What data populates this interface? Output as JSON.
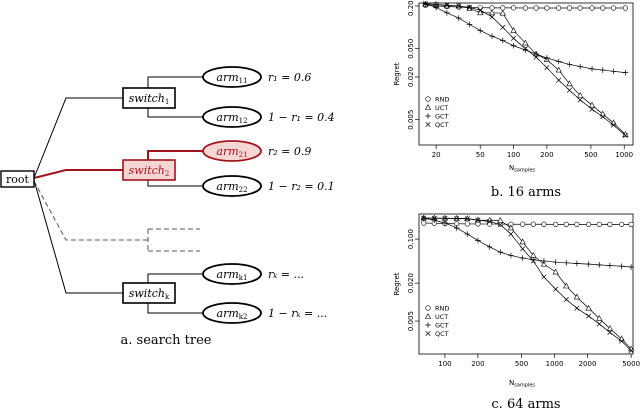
{
  "tree": {
    "root_label": "root",
    "switches": [
      {
        "base": "switch",
        "sub": "1",
        "highlight": false
      },
      {
        "base": "switch",
        "sub": "2",
        "highlight": true
      },
      {
        "base": "switch",
        "sub": "k",
        "highlight": false
      }
    ],
    "arms": [
      {
        "base": "arm",
        "sub": "11",
        "reward": "r₁ = 0.6",
        "highlight": false
      },
      {
        "base": "arm",
        "sub": "12",
        "reward": "1 − r₁ = 0.4",
        "highlight": false
      },
      {
        "base": "arm",
        "sub": "21",
        "reward": "r₂ = 0.9",
        "highlight": true
      },
      {
        "base": "arm",
        "sub": "22",
        "reward": "1 − r₂ = 0.1",
        "highlight": false
      },
      {
        "base": "arm",
        "sub": "k1",
        "reward": "rₖ = ...",
        "highlight": false
      },
      {
        "base": "arm",
        "sub": "k2",
        "reward": "1 − rₖ = ...",
        "highlight": false
      }
    ],
    "caption": "a. search tree",
    "colors": {
      "highlight_stroke": "#a0141e",
      "highlight_fill": "#f6d5d5"
    }
  },
  "chart_data": [
    {
      "type": "line",
      "caption": "b. 16 arms",
      "xlabel": "N",
      "xlabel_sub": "samples",
      "ylabel": "Regret",
      "xscale": "log",
      "yscale": "log",
      "xlim": [
        14,
        1200
      ],
      "ylim": [
        0.0022,
        0.22
      ],
      "xticks": [
        20,
        50,
        100,
        200,
        500,
        1000
      ],
      "xtick_labels": [
        "20",
        "50",
        "100",
        "200",
        "500",
        "1000"
      ],
      "yticks": [
        0.005,
        0.02,
        0.05,
        0.2
      ],
      "ytick_labels": [
        "0.005",
        "0.020",
        "0.050",
        "0.200"
      ],
      "legend_position": "bottom-left",
      "series": [
        {
          "name": "RND",
          "marker": "circle",
          "x": [
            16,
            20,
            25,
            32,
            40,
            50,
            64,
            80,
            100,
            128,
            160,
            200,
            256,
            320,
            400,
            512,
            640,
            800,
            1024
          ],
          "y": [
            0.205,
            0.2,
            0.196,
            0.193,
            0.19,
            0.189,
            0.188,
            0.188,
            0.188,
            0.187,
            0.187,
            0.187,
            0.187,
            0.187,
            0.187,
            0.187,
            0.187,
            0.187,
            0.187
          ]
        },
        {
          "name": "UCT",
          "marker": "triangle",
          "x": [
            16,
            20,
            25,
            32,
            40,
            50,
            64,
            80,
            100,
            128,
            160,
            200,
            256,
            320,
            400,
            512,
            640,
            800,
            1024
          ],
          "y": [
            0.21,
            0.21,
            0.2,
            0.2,
            0.185,
            0.16,
            0.16,
            0.158,
            0.09,
            0.06,
            0.042,
            0.035,
            0.025,
            0.016,
            0.011,
            0.008,
            0.006,
            0.0045,
            0.0031
          ]
        },
        {
          "name": "GCT",
          "marker": "plus",
          "x": [
            16,
            20,
            25,
            32,
            40,
            50,
            64,
            80,
            100,
            128,
            160,
            200,
            256,
            320,
            400,
            512,
            640,
            800,
            1024
          ],
          "y": [
            0.215,
            0.19,
            0.16,
            0.135,
            0.11,
            0.09,
            0.075,
            0.065,
            0.055,
            0.048,
            0.042,
            0.037,
            0.033,
            0.03,
            0.028,
            0.026,
            0.025,
            0.024,
            0.023
          ]
        },
        {
          "name": "QCT",
          "marker": "cross",
          "x": [
            16,
            20,
            25,
            32,
            40,
            50,
            64,
            80,
            100,
            128,
            160,
            200,
            256,
            320,
            400,
            512,
            640,
            800,
            1024
          ],
          "y": [
            0.215,
            0.21,
            0.205,
            0.2,
            0.19,
            0.175,
            0.14,
            0.1,
            0.07,
            0.05,
            0.038,
            0.027,
            0.018,
            0.013,
            0.0095,
            0.007,
            0.0055,
            0.0042,
            0.003
          ]
        }
      ]
    },
    {
      "type": "line",
      "caption": "c. 64 arms",
      "xlabel": "N",
      "xlabel_sub": "samples",
      "ylabel": "Regret",
      "xscale": "log",
      "yscale": "log",
      "xlim": [
        58,
        5200
      ],
      "ylim": [
        0.0015,
        0.25
      ],
      "xticks": [
        100,
        200,
        500,
        1000,
        2000,
        5000
      ],
      "xtick_labels": [
        "100",
        "200",
        "500",
        "1000",
        "2000",
        "5000"
      ],
      "yticks": [
        0.005,
        0.02,
        0.1
      ],
      "ytick_labels": [
        "0.005",
        "0.020",
        "0.100"
      ],
      "legend_position": "bottom-left",
      "series": [
        {
          "name": "RND",
          "marker": "circle",
          "x": [
            64,
            80,
            100,
            128,
            160,
            200,
            256,
            320,
            400,
            512,
            640,
            800,
            1024,
            1280,
            1600,
            2048,
            2560,
            3200,
            4096,
            5000
          ],
          "y": [
            0.18,
            0.178,
            0.176,
            0.175,
            0.174,
            0.174,
            0.173,
            0.173,
            0.172,
            0.172,
            0.172,
            0.172,
            0.171,
            0.171,
            0.171,
            0.171,
            0.171,
            0.171,
            0.171,
            0.171
          ]
        },
        {
          "name": "UCT",
          "marker": "triangle",
          "x": [
            64,
            80,
            100,
            128,
            160,
            200,
            256,
            320,
            400,
            512,
            640,
            800,
            1024,
            1280,
            1600,
            2048,
            2560,
            3200,
            4096,
            5000
          ],
          "y": [
            0.215,
            0.215,
            0.214,
            0.213,
            0.212,
            0.2,
            0.199,
            0.198,
            0.15,
            0.09,
            0.055,
            0.04,
            0.03,
            0.018,
            0.012,
            0.008,
            0.0055,
            0.0038,
            0.0026,
            0.0018
          ]
        },
        {
          "name": "GCT",
          "marker": "plus",
          "x": [
            64,
            80,
            100,
            128,
            160,
            200,
            256,
            320,
            400,
            512,
            640,
            800,
            1024,
            1280,
            1600,
            2048,
            2560,
            3200,
            4096,
            5000
          ],
          "y": [
            0.215,
            0.2,
            0.18,
            0.15,
            0.12,
            0.095,
            0.075,
            0.062,
            0.055,
            0.05,
            0.047,
            0.045,
            0.043,
            0.042,
            0.041,
            0.04,
            0.039,
            0.038,
            0.037,
            0.036
          ]
        },
        {
          "name": "QCT",
          "marker": "cross",
          "x": [
            64,
            80,
            100,
            128,
            160,
            200,
            256,
            320,
            400,
            512,
            640,
            800,
            1024,
            1280,
            1600,
            2048,
            2560,
            3200,
            4096,
            5000
          ],
          "y": [
            0.215,
            0.214,
            0.213,
            0.212,
            0.21,
            0.2,
            0.19,
            0.17,
            0.12,
            0.07,
            0.045,
            0.025,
            0.016,
            0.011,
            0.008,
            0.006,
            0.0045,
            0.0033,
            0.0024,
            0.0017
          ]
        }
      ]
    }
  ]
}
